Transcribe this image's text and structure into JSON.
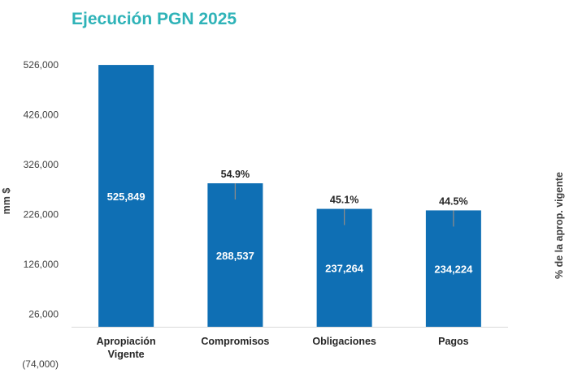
{
  "title": "Ejecución PGN 2025",
  "chart_data": {
    "type": "bar",
    "title": "Ejecución PGN 2025",
    "ylabel": "mm $",
    "y2label": "% de la aprop. vigente",
    "categories": [
      [
        "Apropiación",
        "Vigente"
      ],
      [
        "Compromisos"
      ],
      [
        "Obligaciones"
      ],
      [
        "Pagos"
      ]
    ],
    "values": [
      525849,
      288537,
      237264,
      234224
    ],
    "value_labels": [
      "525,849",
      "288,537",
      "237,264",
      "234,224"
    ],
    "percent_labels": [
      null,
      "54.9%",
      "45.1%",
      "44.5%"
    ],
    "percent_values": [
      null,
      54.9,
      45.1,
      44.5
    ],
    "ylim": [
      -74000,
      526000
    ],
    "yticks": [
      526000,
      426000,
      326000,
      226000,
      126000,
      26000,
      -74000
    ],
    "ytick_labels": [
      "526,000",
      "426,000",
      "326,000",
      "226,000",
      "126,000",
      "26,000",
      "(74,000)"
    ],
    "bar_color": "#0f6fb4",
    "error_bar_color": "#8a8a8a",
    "grid": false
  }
}
